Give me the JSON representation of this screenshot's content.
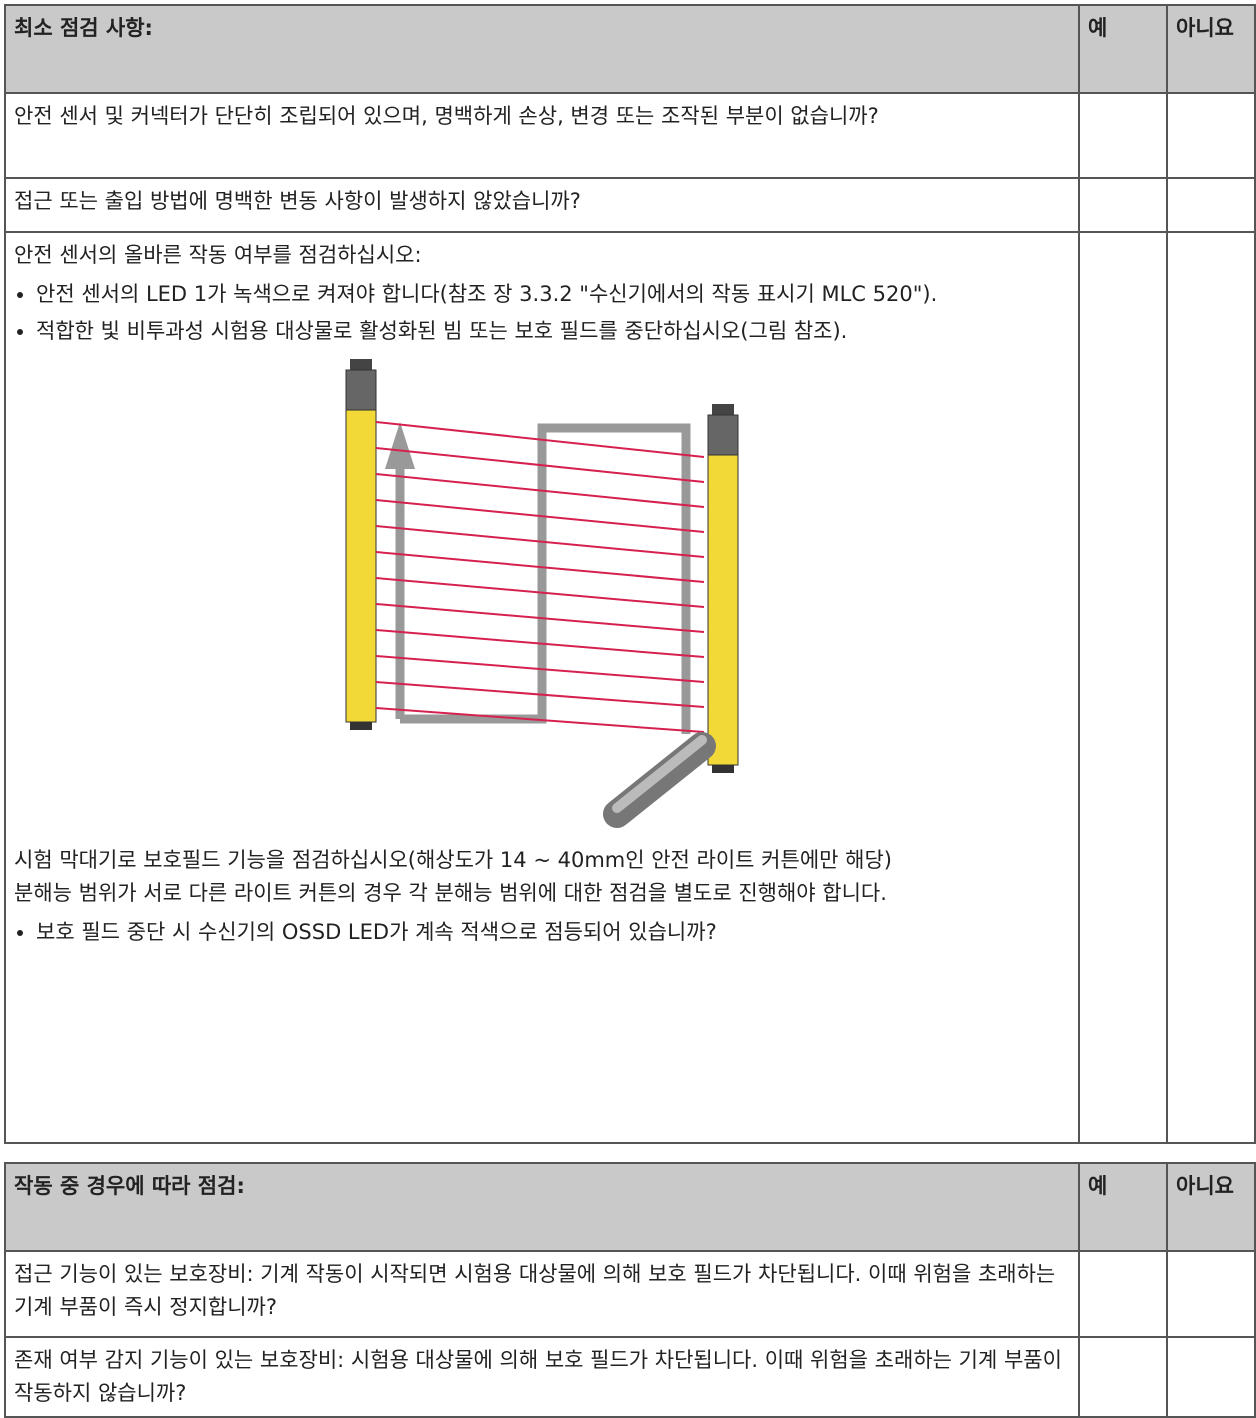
{
  "tables": [
    {
      "header": {
        "question": "최소 점검 사항:",
        "yes": "예",
        "no": "아니요"
      },
      "rows": [
        {
          "text": "안전 센서 및 커넥터가 단단히 조립되어 있으며, 명백하게 손상, 변경 또는 조작된 부분이 없습니까?"
        },
        {
          "text": "접근 또는 출입 방법에 명백한 변동 사항이 발생하지 않았습니까?"
        },
        {
          "intro": "안전 센서의 올바른 작동 여부를 점검하십시오:",
          "bullets": [
            "안전 센서의 LED 1가 녹색으로 켜져야 합니다(참조 장 3.3.2 \"수신기에서의 작동 표시기 MLC 520\").",
            "적합한 빛 비투과성 시험용 대상물로 활성화된 빔 또는 보호 필드를 중단하십시오(그림 참조)."
          ],
          "notes": [
            "시험 막대기로 보호필드 기능을 점검하십시오(해상도가 14 ~ 40mm인 안전 라이트 커튼에만 해당)",
            "분해능 범위가 서로 다른 라이트 커튼의 경우 각 분해능 범위에 대한 점검을 별도로 진행해야 합니다."
          ],
          "final_bullet": "보호 필드 중단 시 수신기의 OSSD LED가 계속 적색으로 점등되어 있습니까?"
        }
      ]
    },
    {
      "header": {
        "question": "작동 중 경우에 따라 점검:",
        "yes": "예",
        "no": "아니요"
      },
      "rows": [
        {
          "text": "접근 기능이 있는 보호장비: 기계 작동이 시작되면 시험용 대상물에 의해 보호 필드가 차단됩니다. 이때 위험을 초래하는 기계 부품이 즉시 정지합니까?"
        },
        {
          "text": "존재 여부 감지 기능이 있는 보호장비: 시험용 대상물에 의해 보호 필드가 차단됩니다. 이때 위험을 초래하는 기계 부품이 작동하지 않습니까?"
        }
      ]
    }
  ]
}
